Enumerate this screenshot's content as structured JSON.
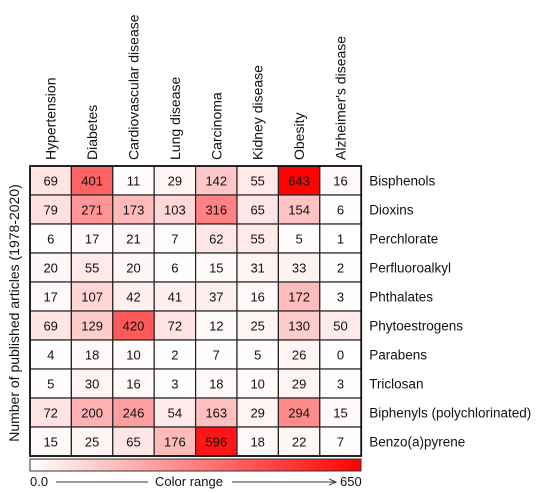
{
  "chart_data": {
    "type": "heatmap",
    "ylabel": "Number of published articles (1978-2020)",
    "columns": [
      "Hypertension",
      "Diabetes",
      "Cardiovascular disease",
      "Lung disease",
      "Carcinoma",
      "Kidney disease",
      "Obesity",
      "Alzheimer's disease"
    ],
    "rows": [
      "Bisphenols",
      "Dioxins",
      "Perchlorate",
      "Perfluoroalkyl",
      "Phthalates",
      "Phytoestrogens",
      "Parabens",
      "Triclosan",
      "Biphenyls (polychlorinated)",
      "Benzo(a)pyrene"
    ],
    "values": [
      [
        69,
        401,
        11,
        29,
        142,
        55,
        643,
        16
      ],
      [
        79,
        271,
        173,
        103,
        316,
        65,
        154,
        6
      ],
      [
        6,
        17,
        21,
        7,
        62,
        55,
        5,
        1
      ],
      [
        20,
        55,
        20,
        6,
        15,
        31,
        33,
        2
      ],
      [
        17,
        107,
        42,
        41,
        37,
        16,
        172,
        3
      ],
      [
        69,
        129,
        420,
        72,
        12,
        25,
        130,
        50
      ],
      [
        4,
        18,
        10,
        2,
        7,
        5,
        26,
        0
      ],
      [
        5,
        30,
        16,
        3,
        18,
        10,
        29,
        3
      ],
      [
        72,
        200,
        246,
        54,
        163,
        29,
        294,
        15
      ],
      [
        15,
        25,
        65,
        176,
        596,
        18,
        22,
        7
      ]
    ],
    "colorbar": {
      "min_label": "0.0",
      "max_label": "650",
      "label": "Color range",
      "min": 0,
      "max": 650,
      "color_low": "#ffffff",
      "color_high": "#ff0000"
    }
  }
}
